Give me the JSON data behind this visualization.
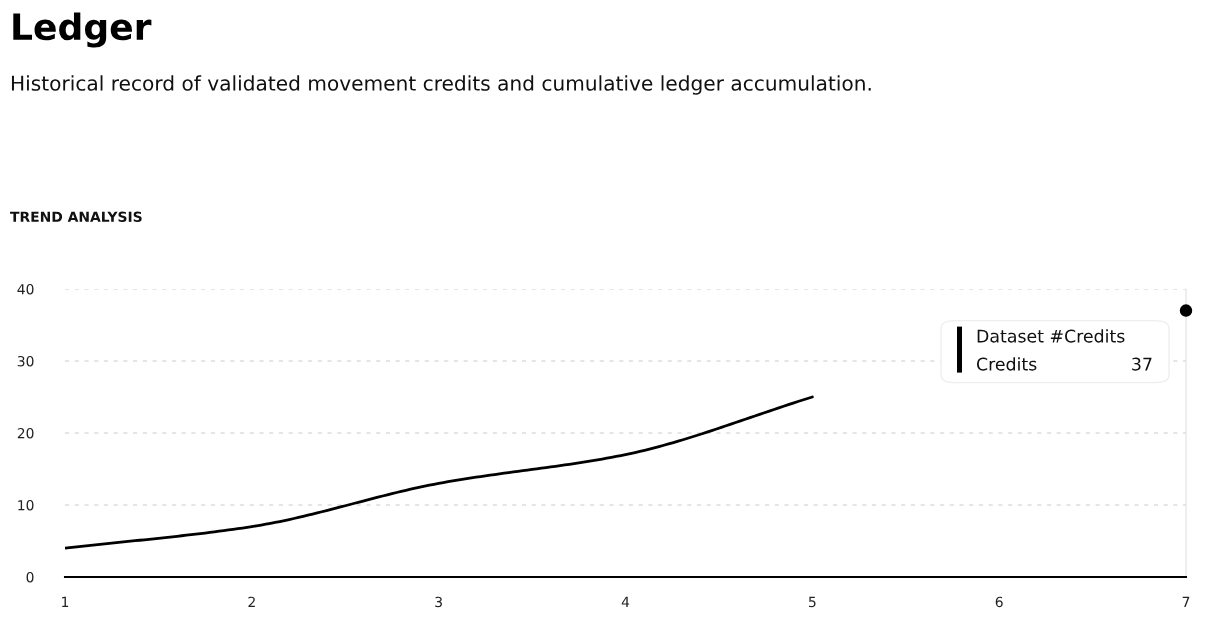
{
  "chart_data": {
    "type": "line",
    "title": "Ledger",
    "subtitle": "Historical record of validated movement credits and cumulative ledger accumulation.",
    "x": [
      1,
      2,
      3,
      4,
      5,
      6,
      7
    ],
    "series": [
      {
        "color": "#000000",
        "values": [
          4,
          7,
          13,
          17,
          25,
          null,
          37
        ]
      }
    ],
    "xlim": [
      1,
      7
    ],
    "xticks": [
      1,
      2,
      3,
      4,
      5,
      6,
      7
    ],
    "ylim": [
      0,
      40
    ],
    "yticks": [
      0,
      10,
      20,
      30,
      40
    ],
    "grid": "y",
    "marker": "none",
    "line_style": "solid",
    "annotations": [
      "TREND ANALYSIS",
      "Dataset #Credits",
      "Credits",
      "37"
    ]
  }
}
